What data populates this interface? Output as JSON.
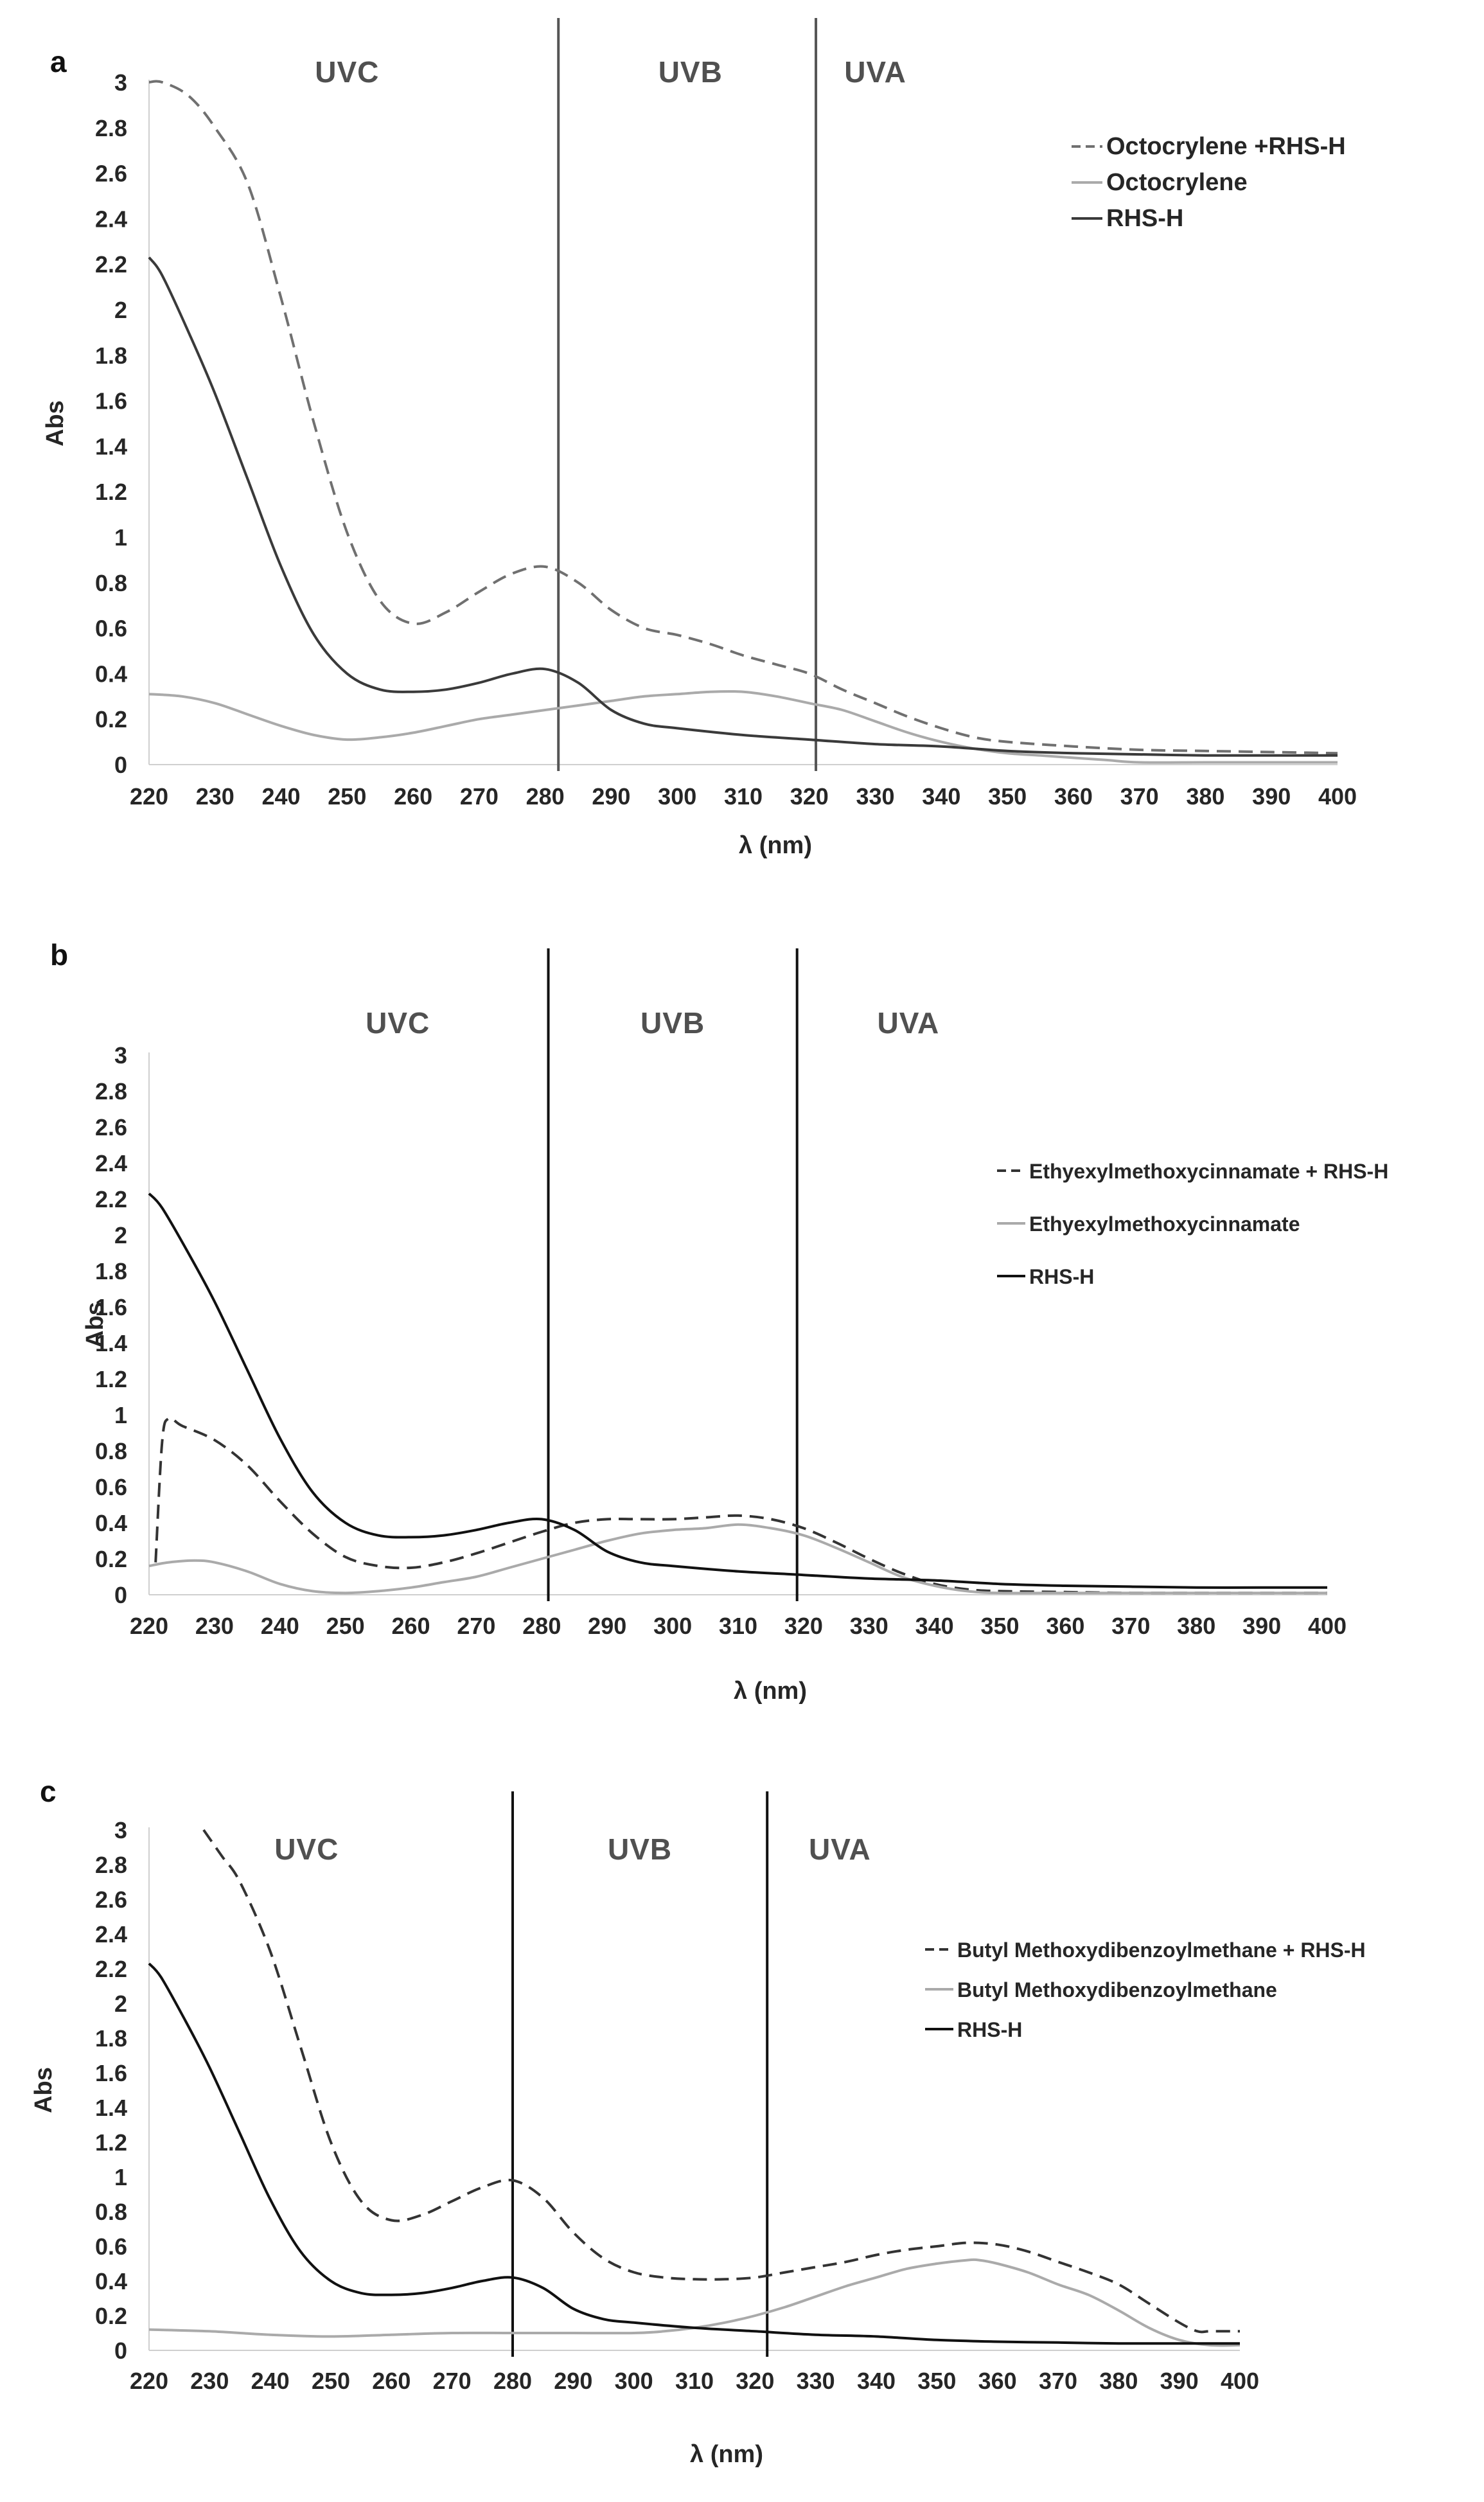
{
  "figure": {
    "panel_letters": [
      "a",
      "b",
      "c"
    ]
  },
  "chart_data": [
    {
      "type": "line",
      "panel": "a",
      "xlabel": "λ (nm)",
      "ylabel": "Abs",
      "xlim": [
        220,
        400
      ],
      "ylim": [
        0,
        3
      ],
      "x_ticks": [
        220,
        230,
        240,
        250,
        260,
        270,
        280,
        290,
        300,
        310,
        320,
        330,
        340,
        350,
        360,
        370,
        380,
        390,
        400
      ],
      "y_ticks": [
        0,
        0.2,
        0.4,
        0.6,
        0.8,
        1,
        1.2,
        1.4,
        1.6,
        1.8,
        2,
        2.2,
        2.4,
        2.6,
        2.8,
        3
      ],
      "y_tick_labels": [
        "0",
        "0.2",
        "0.4",
        "0.6",
        "0.8",
        "1",
        "1.2",
        "1.4",
        "1.6",
        "1.8",
        "2",
        "2.2",
        "2.4",
        "2.6",
        "2.8",
        "3"
      ],
      "regions": [
        {
          "label": "UVC",
          "center": 250
        },
        {
          "label": "UVB",
          "center": 302
        },
        {
          "label": "UVA",
          "center": 330
        }
      ],
      "dividers": [
        282,
        321
      ],
      "legend_position": "top-right",
      "series": [
        {
          "name": "Octocrylene +RHS-H",
          "style": "dashed",
          "color": "#707070",
          "x": [
            220,
            222,
            226,
            230,
            235,
            240,
            245,
            250,
            255,
            260,
            265,
            270,
            275,
            280,
            285,
            290,
            295,
            300,
            305,
            310,
            315,
            320,
            325,
            330,
            335,
            340,
            345,
            350,
            360,
            370,
            380,
            390,
            400
          ],
          "y": [
            3.0,
            3.0,
            2.94,
            2.8,
            2.55,
            2.05,
            1.5,
            1.02,
            0.72,
            0.62,
            0.67,
            0.76,
            0.84,
            0.87,
            0.8,
            0.68,
            0.6,
            0.57,
            0.53,
            0.48,
            0.44,
            0.4,
            0.33,
            0.27,
            0.21,
            0.16,
            0.12,
            0.1,
            0.08,
            0.065,
            0.06,
            0.055,
            0.05
          ]
        },
        {
          "name": "Octocrylene",
          "style": "solid",
          "color": "#aaaaaa",
          "x": [
            220,
            225,
            230,
            235,
            240,
            245,
            250,
            255,
            260,
            265,
            270,
            275,
            280,
            285,
            290,
            295,
            300,
            305,
            310,
            315,
            320,
            325,
            330,
            335,
            340,
            345,
            350,
            355,
            360,
            365,
            370,
            380,
            390,
            400
          ],
          "y": [
            0.31,
            0.3,
            0.27,
            0.22,
            0.17,
            0.13,
            0.11,
            0.12,
            0.14,
            0.17,
            0.2,
            0.22,
            0.24,
            0.26,
            0.28,
            0.3,
            0.31,
            0.32,
            0.32,
            0.3,
            0.27,
            0.24,
            0.19,
            0.14,
            0.1,
            0.07,
            0.05,
            0.04,
            0.03,
            0.02,
            0.01,
            0.01,
            0.01,
            0.01
          ]
        },
        {
          "name": "RHS-H",
          "style": "solid",
          "color": "#3a3a3a",
          "x": [
            220,
            222,
            226,
            230,
            235,
            240,
            245,
            250,
            255,
            260,
            265,
            270,
            275,
            280,
            285,
            290,
            295,
            300,
            310,
            320,
            330,
            340,
            350,
            360,
            370,
            380,
            390,
            400
          ],
          "y": [
            2.23,
            2.15,
            1.9,
            1.63,
            1.25,
            0.87,
            0.57,
            0.4,
            0.33,
            0.32,
            0.33,
            0.36,
            0.4,
            0.42,
            0.36,
            0.24,
            0.18,
            0.16,
            0.13,
            0.11,
            0.09,
            0.08,
            0.06,
            0.05,
            0.045,
            0.04,
            0.04,
            0.04
          ]
        }
      ]
    },
    {
      "type": "line",
      "panel": "b",
      "xlabel": "λ (nm)",
      "ylabel": "Abs",
      "xlim": [
        220,
        400
      ],
      "ylim": [
        0,
        3
      ],
      "x_ticks": [
        220,
        230,
        240,
        250,
        260,
        270,
        280,
        290,
        300,
        310,
        320,
        330,
        340,
        350,
        360,
        370,
        380,
        390,
        400
      ],
      "y_ticks": [
        0,
        0.2,
        0.4,
        0.6,
        0.8,
        1,
        1.2,
        1.4,
        1.6,
        1.8,
        2,
        2.2,
        2.4,
        2.6,
        2.8,
        3
      ],
      "y_tick_labels": [
        "0",
        "0.2",
        "0.4",
        "0.6",
        "0.8",
        "1",
        "1.2",
        "1.4",
        "1.6",
        "1.8",
        "2",
        "2.2",
        "2.4",
        "2.6",
        "2.8",
        "3"
      ],
      "regions": [
        {
          "label": "UVC",
          "center": 258
        },
        {
          "label": "UVB",
          "center": 300
        },
        {
          "label": "UVA",
          "center": 336
        }
      ],
      "dividers": [
        281,
        319
      ],
      "legend_position": "right",
      "series": [
        {
          "name": "Ethyexylmethoxycinnamate + RHS-H",
          "style": "dashed",
          "color": "#333333",
          "x": [
            221,
            222,
            223,
            225,
            230,
            235,
            240,
            245,
            250,
            255,
            260,
            265,
            270,
            275,
            280,
            285,
            290,
            295,
            300,
            305,
            310,
            315,
            320,
            325,
            330,
            335,
            340,
            345,
            350,
            360,
            370,
            380,
            390,
            400
          ],
          "y": [
            0.18,
            0.85,
            0.98,
            0.94,
            0.86,
            0.72,
            0.52,
            0.34,
            0.21,
            0.16,
            0.15,
            0.18,
            0.23,
            0.29,
            0.35,
            0.4,
            0.42,
            0.42,
            0.42,
            0.43,
            0.44,
            0.42,
            0.37,
            0.29,
            0.2,
            0.12,
            0.06,
            0.03,
            0.02,
            0.015,
            0.01,
            0.01,
            0.01,
            0.01
          ]
        },
        {
          "name": "Ethyexylmethoxycinnamate",
          "style": "solid",
          "color": "#aaaaaa",
          "x": [
            220,
            223,
            227,
            230,
            235,
            240,
            245,
            250,
            255,
            260,
            265,
            270,
            275,
            280,
            285,
            290,
            295,
            300,
            305,
            310,
            315,
            320,
            325,
            330,
            335,
            340,
            345,
            350,
            360,
            370,
            380,
            390,
            400
          ],
          "y": [
            0.16,
            0.18,
            0.19,
            0.18,
            0.13,
            0.06,
            0.02,
            0.01,
            0.02,
            0.04,
            0.07,
            0.1,
            0.15,
            0.2,
            0.25,
            0.3,
            0.34,
            0.36,
            0.37,
            0.39,
            0.37,
            0.33,
            0.26,
            0.18,
            0.1,
            0.05,
            0.02,
            0.01,
            0.01,
            0.01,
            0.01,
            0.01,
            0.01
          ]
        },
        {
          "name": "RHS-H",
          "style": "solid",
          "color": "#111111",
          "x": [
            220,
            222,
            226,
            230,
            235,
            240,
            245,
            250,
            255,
            260,
            265,
            270,
            275,
            280,
            285,
            290,
            295,
            300,
            310,
            320,
            330,
            340,
            350,
            360,
            370,
            380,
            390,
            400
          ],
          "y": [
            2.23,
            2.15,
            1.9,
            1.63,
            1.25,
            0.87,
            0.57,
            0.4,
            0.33,
            0.32,
            0.33,
            0.36,
            0.4,
            0.42,
            0.36,
            0.24,
            0.18,
            0.16,
            0.13,
            0.11,
            0.09,
            0.08,
            0.06,
            0.05,
            0.045,
            0.04,
            0.04,
            0.04
          ]
        }
      ]
    },
    {
      "type": "line",
      "panel": "c",
      "xlabel": "λ (nm)",
      "ylabel": "Abs",
      "xlim": [
        220,
        400
      ],
      "ylim": [
        0,
        3
      ],
      "x_ticks": [
        220,
        230,
        240,
        250,
        260,
        270,
        280,
        290,
        300,
        310,
        320,
        330,
        340,
        350,
        360,
        370,
        380,
        390,
        400
      ],
      "y_ticks": [
        0,
        0.2,
        0.4,
        0.6,
        0.8,
        1,
        1.2,
        1.4,
        1.6,
        1.8,
        2,
        2.2,
        2.4,
        2.6,
        2.8,
        3
      ],
      "y_tick_labels": [
        "0",
        "0.2",
        "0.4",
        "0.6",
        "0.8",
        "1",
        "1.2",
        "1.4",
        "1.6",
        "1.8",
        "2",
        "2.2",
        "2.4",
        "2.6",
        "2.8",
        "3"
      ],
      "regions": [
        {
          "label": "UVC",
          "center": 246
        },
        {
          "label": "UVB",
          "center": 301
        },
        {
          "label": "UVA",
          "center": 334
        }
      ],
      "dividers": [
        280,
        322
      ],
      "legend_position": "right",
      "series": [
        {
          "name": "Butyl Methoxydibenzoylmethane + RHS-H",
          "style": "dashed",
          "color": "#333333",
          "x": [
            229,
            232,
            235,
            240,
            245,
            250,
            255,
            260,
            265,
            270,
            275,
            280,
            285,
            290,
            295,
            300,
            305,
            310,
            315,
            320,
            325,
            330,
            335,
            340,
            345,
            350,
            355,
            360,
            365,
            370,
            375,
            380,
            385,
            390,
            393,
            395,
            398,
            400
          ],
          "y": [
            3.0,
            2.85,
            2.7,
            2.3,
            1.75,
            1.2,
            0.86,
            0.75,
            0.78,
            0.86,
            0.94,
            0.98,
            0.88,
            0.68,
            0.53,
            0.45,
            0.42,
            0.41,
            0.41,
            0.42,
            0.45,
            0.48,
            0.51,
            0.55,
            0.58,
            0.6,
            0.62,
            0.61,
            0.57,
            0.51,
            0.45,
            0.38,
            0.27,
            0.16,
            0.11,
            0.11,
            0.11,
            0.11
          ]
        },
        {
          "name": "Butyl Methoxydibenzoylmethane",
          "style": "solid",
          "color": "#aaaaaa",
          "x": [
            220,
            230,
            240,
            250,
            260,
            270,
            280,
            290,
            300,
            305,
            310,
            315,
            320,
            325,
            330,
            335,
            340,
            345,
            350,
            355,
            357,
            360,
            365,
            370,
            375,
            380,
            385,
            390,
            395,
            400
          ],
          "y": [
            0.12,
            0.11,
            0.09,
            0.08,
            0.09,
            0.1,
            0.1,
            0.1,
            0.1,
            0.11,
            0.13,
            0.16,
            0.2,
            0.25,
            0.31,
            0.37,
            0.42,
            0.47,
            0.5,
            0.52,
            0.52,
            0.5,
            0.45,
            0.38,
            0.32,
            0.23,
            0.13,
            0.06,
            0.03,
            0.03
          ]
        },
        {
          "name": "RHS-H",
          "style": "solid",
          "color": "#111111",
          "x": [
            220,
            222,
            226,
            230,
            235,
            240,
            245,
            250,
            255,
            260,
            265,
            270,
            275,
            280,
            285,
            290,
            295,
            300,
            310,
            320,
            330,
            340,
            350,
            360,
            370,
            380,
            390,
            400
          ],
          "y": [
            2.23,
            2.15,
            1.9,
            1.63,
            1.25,
            0.87,
            0.57,
            0.4,
            0.33,
            0.32,
            0.33,
            0.36,
            0.4,
            0.42,
            0.36,
            0.24,
            0.18,
            0.16,
            0.13,
            0.11,
            0.09,
            0.08,
            0.06,
            0.05,
            0.045,
            0.04,
            0.04,
            0.04
          ]
        }
      ]
    }
  ]
}
